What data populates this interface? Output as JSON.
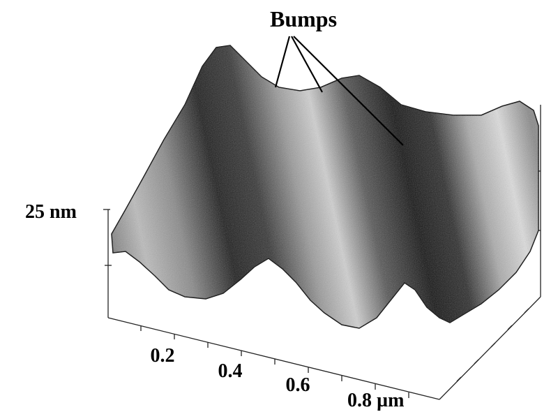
{
  "annotation": "Bumps",
  "z_axis": {
    "label": "25 nm"
  },
  "x_axis": {
    "tick_labels": [
      "0.2",
      "0.4",
      "0.6",
      "0.8 µm"
    ]
  }
}
